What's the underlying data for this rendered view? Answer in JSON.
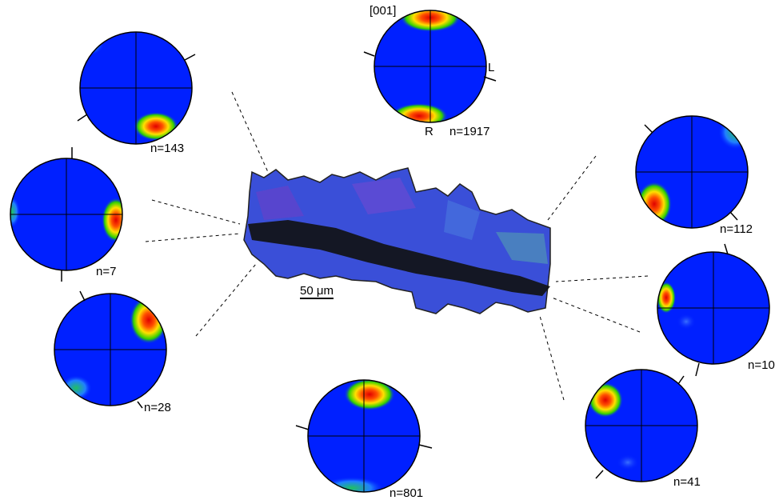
{
  "map": {
    "scale_bar": "50 μm"
  },
  "pole_figures": [
    {
      "label": "n=1917",
      "direction": "[001]",
      "right_axis": "L",
      "bottom_axis": "R"
    },
    {
      "label": "n=143"
    },
    {
      "label": "n=7"
    },
    {
      "label": "n=28"
    },
    {
      "label": "n=801"
    },
    {
      "label": "n=112"
    },
    {
      "label": "n=10"
    },
    {
      "label": "n=41"
    }
  ]
}
